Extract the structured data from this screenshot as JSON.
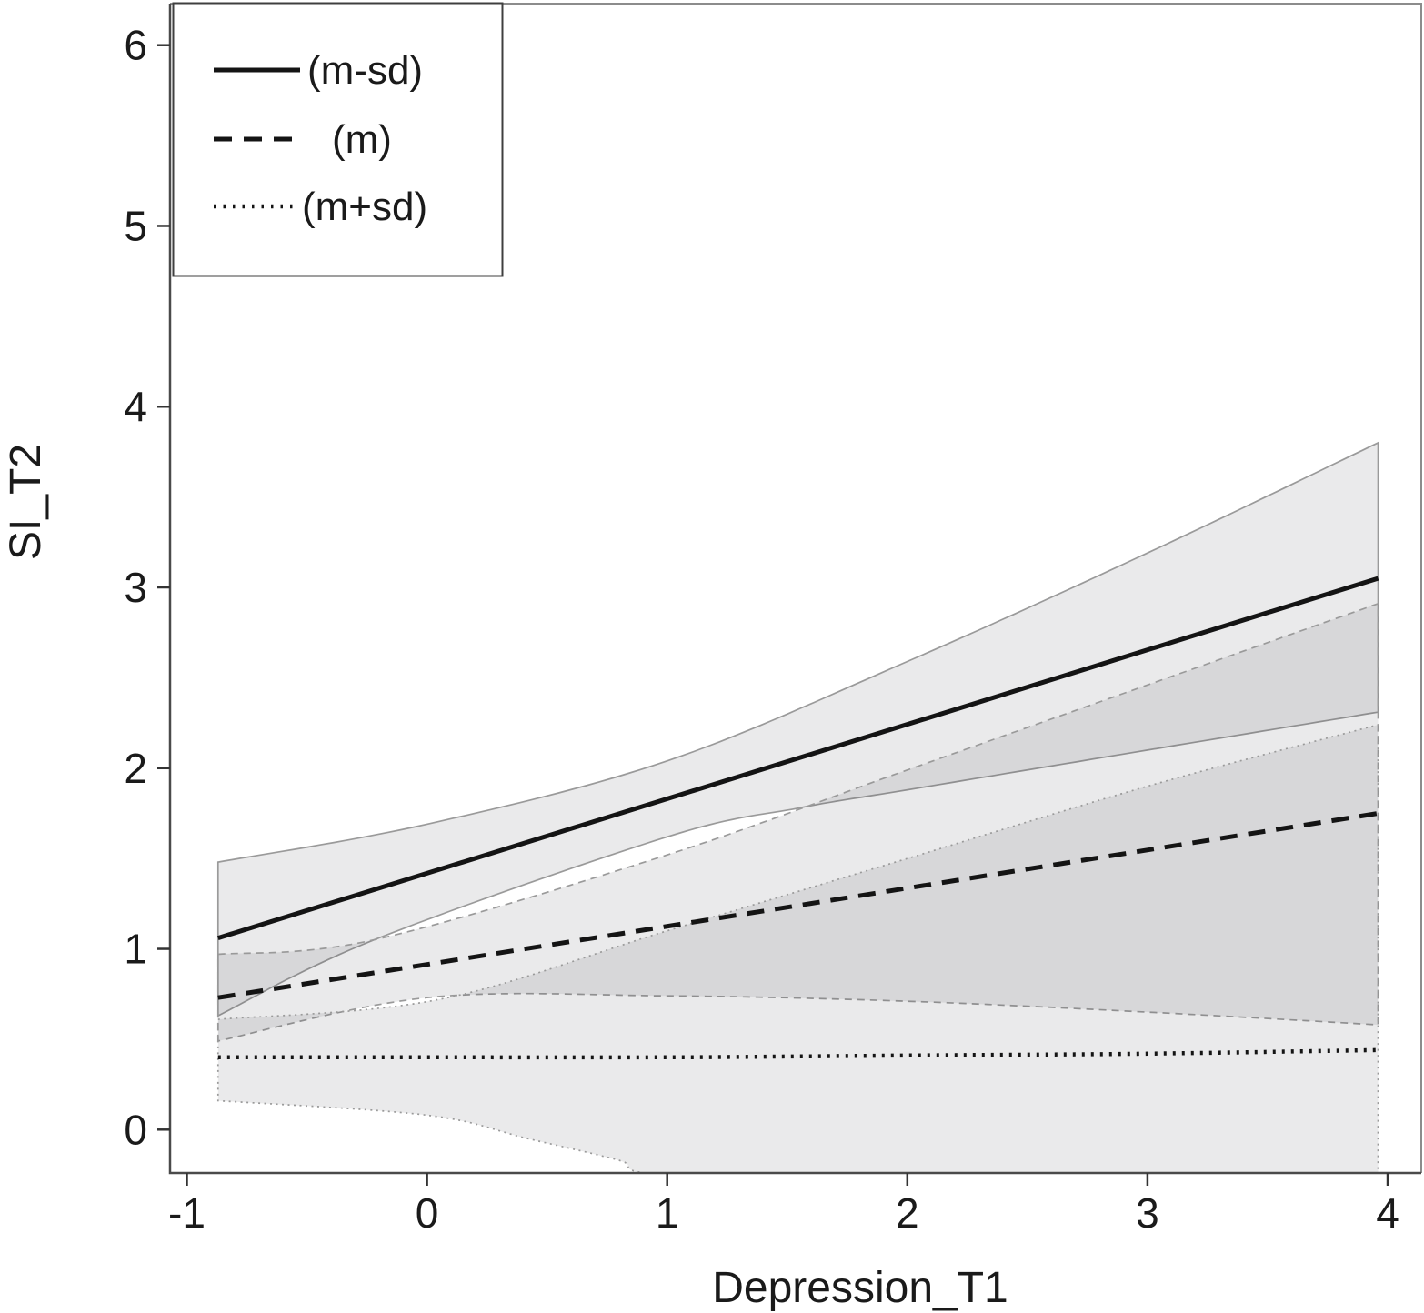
{
  "colors": {
    "band_fill": "rgba(45,45,55,0.10)",
    "ci_edge": "#9a9a9a",
    "line": "#141414",
    "frame_dark": "#4a4a4a",
    "frame_light": "#8c8c8c",
    "tick": "#333333",
    "legend_border": "#3f3f3f",
    "background": "#ffffff"
  },
  "legend": {
    "items": [
      {
        "label": "(m-sd)",
        "style": "solid"
      },
      {
        "label": "(m)",
        "style": "dashed"
      },
      {
        "label": "(m+sd)",
        "style": "dotted"
      }
    ]
  },
  "chart_data": {
    "type": "line",
    "title": "",
    "xlabel": "Depression_T1",
    "ylabel": "SI_T2",
    "x_ticks": [
      -1,
      0,
      1,
      2,
      3,
      4
    ],
    "y_ticks": [
      0,
      1,
      2,
      3,
      4,
      5,
      6
    ],
    "xlim": [
      -1.07,
      4.14
    ],
    "ylim": [
      -0.24,
      6.23
    ],
    "grid": false,
    "legend_position": "top-left",
    "series": [
      {
        "name": "(m-sd)",
        "line_style": "solid",
        "line": [
          [
            -0.87,
            1.06
          ],
          [
            3.96,
            3.05
          ]
        ],
        "ci_upper": [
          [
            -0.87,
            1.48
          ],
          [
            0,
            1.69
          ],
          [
            1,
            2.04
          ],
          [
            2,
            2.59
          ],
          [
            3,
            3.19
          ],
          [
            3.96,
            3.8
          ]
        ],
        "ci_lower": [
          [
            -0.87,
            0.63
          ],
          [
            -0.22,
            1.05
          ],
          [
            1,
            1.62
          ],
          [
            1.55,
            1.78
          ],
          [
            2,
            1.88
          ],
          [
            3,
            2.1
          ],
          [
            3.96,
            2.31
          ]
        ]
      },
      {
        "name": "(m)",
        "line_style": "dashed",
        "line": [
          [
            -0.87,
            0.73
          ],
          [
            3.96,
            1.75
          ]
        ],
        "ci_upper": [
          [
            -0.87,
            0.97
          ],
          [
            -0.22,
            1.05
          ],
          [
            1,
            1.52
          ],
          [
            2,
            1.99
          ],
          [
            3,
            2.46
          ],
          [
            3.96,
            2.91
          ]
        ],
        "ci_lower": [
          [
            -0.87,
            0.49
          ],
          [
            0,
            0.73
          ],
          [
            1,
            0.74
          ],
          [
            2,
            0.71
          ],
          [
            3,
            0.65
          ],
          [
            3.96,
            0.58
          ]
        ]
      },
      {
        "name": "(m+sd)",
        "line_style": "dotted",
        "line": [
          [
            -0.87,
            0.4
          ],
          [
            0,
            0.4
          ],
          [
            1,
            0.4
          ],
          [
            2,
            0.41
          ],
          [
            3,
            0.42
          ],
          [
            3.96,
            0.44
          ]
        ],
        "ci_upper": [
          [
            -0.87,
            0.61
          ],
          [
            0.05,
            0.72
          ],
          [
            1,
            1.1
          ],
          [
            2,
            1.5
          ],
          [
            3,
            1.9
          ],
          [
            3.96,
            2.24
          ]
        ],
        "ci_lower": [
          [
            -0.87,
            0.16
          ],
          [
            0,
            0.08
          ],
          [
            0.42,
            -0.05
          ],
          [
            0.8,
            -0.17
          ],
          [
            0.96,
            -0.25
          ],
          [
            2,
            -0.36
          ],
          [
            3.96,
            -0.4
          ]
        ]
      }
    ]
  }
}
